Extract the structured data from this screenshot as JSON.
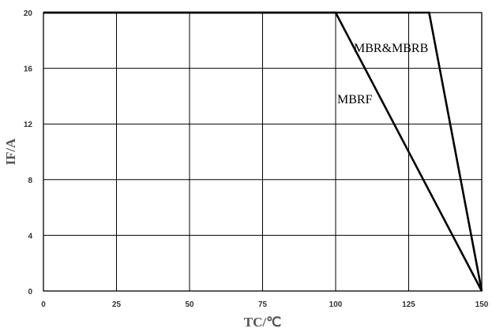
{
  "chart_data": {
    "type": "line",
    "xlabel": "TC/℃",
    "ylabel": "IF/A",
    "xlim": [
      0,
      150
    ],
    "ylim": [
      0,
      20
    ],
    "xticks": [
      "0",
      "25",
      "50",
      "75",
      "100",
      "125",
      "150"
    ],
    "yticks": [
      "0",
      "4",
      "8",
      "12",
      "16",
      "20"
    ],
    "grid": true,
    "series": [
      {
        "name": "MBRF",
        "x": [
          0,
          100,
          150
        ],
        "y": [
          20,
          20,
          0
        ]
      },
      {
        "name": "MBR&MBRB",
        "x": [
          0,
          132,
          150
        ],
        "y": [
          20,
          20,
          0
        ]
      }
    ],
    "colors": {
      "line": "#000000",
      "grid": "#000000",
      "tick_text": "#333333",
      "axis_text": "#555555"
    }
  }
}
